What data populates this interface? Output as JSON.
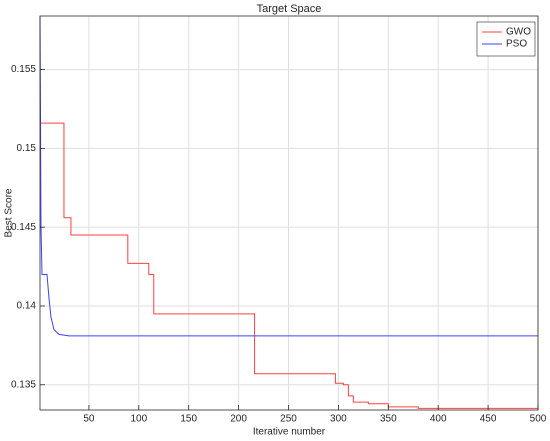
{
  "chart_data": {
    "type": "line",
    "title": "Target Space",
    "x_label": "Iterative number",
    "y_label": "Best Score",
    "xlim": [
      1,
      500
    ],
    "ylim": [
      0.1334,
      0.1584
    ],
    "xticks": [
      50,
      100,
      150,
      200,
      250,
      300,
      350,
      400,
      450,
      500
    ],
    "yticks": [
      0.135,
      0.14,
      0.145,
      0.15,
      0.155
    ],
    "grid": true,
    "legend": "top-right",
    "series": [
      {
        "name": "GWO",
        "color": "#ff4040",
        "x": [
          1,
          25,
          25,
          32,
          32,
          89,
          89,
          110,
          110,
          115,
          115,
          216,
          216,
          297,
          297,
          305,
          305,
          310,
          310,
          315,
          315,
          330,
          330,
          350,
          350,
          380,
          380,
          500
        ],
        "values": [
          0.1516,
          0.1516,
          0.1456,
          0.1456,
          0.1445,
          0.1445,
          0.1427,
          0.1427,
          0.142,
          0.142,
          0.1395,
          0.1395,
          0.1357,
          0.1357,
          0.1351,
          0.1351,
          0.135,
          0.135,
          0.1343,
          0.1343,
          0.1339,
          0.1339,
          0.1338,
          0.1338,
          0.1336,
          0.1336,
          0.1335,
          0.1335
        ]
      },
      {
        "name": "PSO",
        "color": "#4040ff",
        "x": [
          1,
          2,
          3,
          8,
          10,
          12,
          15,
          20,
          30,
          500
        ],
        "values": [
          0.1584,
          0.145,
          0.142,
          0.142,
          0.1405,
          0.1393,
          0.1385,
          0.1382,
          0.1381,
          0.1381
        ]
      }
    ]
  }
}
